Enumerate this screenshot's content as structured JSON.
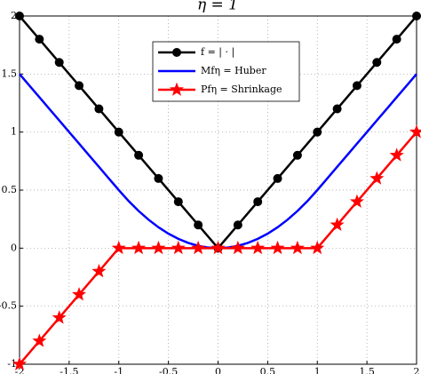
{
  "chart_data": {
    "type": "line",
    "title": "η = 1",
    "xlim": [
      -2,
      2
    ],
    "ylim": [
      -1,
      2
    ],
    "xticks": [
      -2,
      -1.5,
      -1,
      -0.5,
      0,
      0.5,
      1,
      1.5,
      2
    ],
    "yticks": [
      -1,
      -0.5,
      0,
      0.5,
      1,
      1.5,
      2
    ],
    "grid": true,
    "legend": "top",
    "series": [
      {
        "name": "f = | · |",
        "color": "#000000",
        "marker": "circle",
        "x": [
          -2,
          -1.8,
          -1.6,
          -1.4,
          -1.2,
          -1,
          -0.8,
          -0.6,
          -0.4,
          -0.2,
          0,
          0.2,
          0.4,
          0.6,
          0.8,
          1,
          1.2,
          1.4,
          1.6,
          1.8,
          2
        ],
        "values": [
          2,
          1.8,
          1.6,
          1.4,
          1.2,
          1,
          0.8,
          0.6,
          0.4,
          0.2,
          0,
          0.2,
          0.4,
          0.6,
          0.8,
          1,
          1.2,
          1.4,
          1.6,
          1.8,
          2
        ]
      },
      {
        "name": "Mfη = Huber",
        "color": "#0000ff",
        "marker": "none",
        "x": [
          -2,
          -1.9,
          -1.8,
          -1.7,
          -1.6,
          -1.5,
          -1.4,
          -1.3,
          -1.2,
          -1.1,
          -1,
          -0.9,
          -0.8,
          -0.7,
          -0.6,
          -0.5,
          -0.4,
          -0.3,
          -0.2,
          -0.1,
          0,
          0.1,
          0.2,
          0.3,
          0.4,
          0.5,
          0.6,
          0.7,
          0.8,
          0.9,
          1,
          1.1,
          1.2,
          1.3,
          1.4,
          1.5,
          1.6,
          1.7,
          1.8,
          1.9,
          2
        ],
        "values": [
          1.5,
          1.4,
          1.3,
          1.2,
          1.1,
          1,
          0.9,
          0.8,
          0.7,
          0.6,
          0.5,
          0.405,
          0.32,
          0.245,
          0.18,
          0.125,
          0.08,
          0.045,
          0.02,
          0.005,
          0,
          0.005,
          0.02,
          0.045,
          0.08,
          0.125,
          0.18,
          0.245,
          0.32,
          0.405,
          0.5,
          0.6,
          0.7,
          0.8,
          0.9,
          1,
          1.1,
          1.2,
          1.3,
          1.4,
          1.5
        ]
      },
      {
        "name": "Pfη = Shrinkage",
        "color": "#ff0000",
        "marker": "star",
        "x": [
          -2,
          -1.8,
          -1.6,
          -1.4,
          -1.2,
          -1,
          -0.8,
          -0.6,
          -0.4,
          -0.2,
          0,
          0.2,
          0.4,
          0.6,
          0.8,
          1,
          1.2,
          1.4,
          1.6,
          1.8,
          2
        ],
        "values": [
          -1,
          -0.8,
          -0.6,
          -0.4,
          -0.2,
          0,
          0,
          0,
          0,
          0,
          0,
          0,
          0,
          0,
          0,
          0,
          0.2,
          0.4,
          0.6,
          0.8,
          1
        ]
      }
    ]
  }
}
